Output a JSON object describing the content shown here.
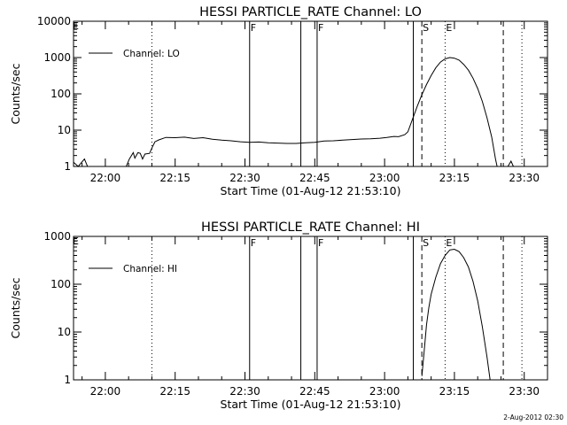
{
  "chart_data": [
    {
      "type": "line",
      "title": "HESSI PARTICLE_RATE Channel: LO",
      "xlabel": "Start Time (01-Aug-12 21:53:10)",
      "ylabel": "Counts/sec",
      "x_scale": "time",
      "y_scale": "log",
      "xlim": [
        "21:53:10",
        "23:35:00"
      ],
      "ylim": [
        1,
        10000
      ],
      "x_ticks": [
        "22:00",
        "22:15",
        "22:30",
        "22:45",
        "23:00",
        "23:15",
        "23:30"
      ],
      "y_ticks": [
        "1",
        "10",
        "100",
        "1000",
        "10000"
      ],
      "legend": {
        "position": "top-left",
        "entries": [
          "Channel: LO"
        ]
      },
      "series": [
        {
          "name": "Channel: LO",
          "color": "#000000",
          "points": [
            [
              "21:53:10",
              1.3
            ],
            [
              "21:54:10",
              0.9
            ],
            [
              "21:55:30",
              1.6
            ],
            [
              "21:56:10",
              0.9
            ],
            [
              "22:04:30",
              0.9
            ],
            [
              "22:05:10",
              1.6
            ],
            [
              "22:06:00",
              2.4
            ],
            [
              "22:06:20",
              1.7
            ],
            [
              "22:07:00",
              2.4
            ],
            [
              "22:07:30",
              2.3
            ],
            [
              "22:08:00",
              1.6
            ],
            [
              "22:08:30",
              2.2
            ],
            [
              "22:09:30",
              2.3
            ],
            [
              "22:10:00",
              3.2
            ],
            [
              "22:10:40",
              4.8
            ],
            [
              "22:11:30",
              5.4
            ],
            [
              "22:13:00",
              6.3
            ],
            [
              "22:15:00",
              6.2
            ],
            [
              "22:17:00",
              6.4
            ],
            [
              "22:19:00",
              5.9
            ],
            [
              "22:21:00",
              6.2
            ],
            [
              "22:23:00",
              5.6
            ],
            [
              "22:25:00",
              5.3
            ],
            [
              "22:27:00",
              5.1
            ],
            [
              "22:29:00",
              4.8
            ],
            [
              "22:31:00",
              4.6
            ],
            [
              "22:33:00",
              4.7
            ],
            [
              "22:35:00",
              4.5
            ],
            [
              "22:37:00",
              4.4
            ],
            [
              "22:39:00",
              4.3
            ],
            [
              "22:41:00",
              4.3
            ],
            [
              "22:43:00",
              4.5
            ],
            [
              "22:45:00",
              4.6
            ],
            [
              "22:47:00",
              5.0
            ],
            [
              "22:49:00",
              5.1
            ],
            [
              "22:51:00",
              5.3
            ],
            [
              "22:53:00",
              5.5
            ],
            [
              "22:55:00",
              5.7
            ],
            [
              "22:57:00",
              5.8
            ],
            [
              "22:59:00",
              6.0
            ],
            [
              "23:00:30",
              6.3
            ],
            [
              "23:02:00",
              6.7
            ],
            [
              "23:03:00",
              6.6
            ],
            [
              "23:04:20",
              7.5
            ],
            [
              "23:05:00",
              9
            ],
            [
              "23:06:00",
              20
            ],
            [
              "23:07:00",
              45
            ],
            [
              "23:08:00",
              95
            ],
            [
              "23:09:00",
              180
            ],
            [
              "23:10:00",
              320
            ],
            [
              "23:11:00",
              520
            ],
            [
              "23:12:00",
              750
            ],
            [
              "23:13:00",
              920
            ],
            [
              "23:14:00",
              1000
            ],
            [
              "23:15:00",
              960
            ],
            [
              "23:16:00",
              850
            ],
            [
              "23:17:00",
              650
            ],
            [
              "23:18:00",
              450
            ],
            [
              "23:19:00",
              270
            ],
            [
              "23:20:00",
              140
            ],
            [
              "23:21:00",
              62
            ],
            [
              "23:22:00",
              22
            ],
            [
              "23:23:00",
              6.5
            ],
            [
              "23:23:50",
              1.6
            ],
            [
              "23:24:10",
              0.9
            ],
            [
              "23:26:30",
              0.9
            ],
            [
              "23:27:10",
              1.4
            ],
            [
              "23:27:40",
              0.9
            ]
          ]
        }
      ],
      "lines": [
        {
          "label": "",
          "time": "22:10:00",
          "style": "dotted"
        },
        {
          "label": "F",
          "time": "22:31:00",
          "style": "solid"
        },
        {
          "label": "",
          "time": "22:42:00",
          "style": "solid"
        },
        {
          "label": "F",
          "time": "22:45:30",
          "style": "solid"
        },
        {
          "label": "",
          "time": "23:06:10",
          "style": "solid"
        },
        {
          "label": "S",
          "time": "23:08:00",
          "style": "dashed"
        },
        {
          "label": "E",
          "time": "23:13:00",
          "style": "dotted"
        },
        {
          "label": "",
          "time": "23:25:30",
          "style": "dashed"
        },
        {
          "label": "",
          "time": "23:29:30",
          "style": "dotted"
        }
      ],
      "corner_label": "E"
    },
    {
      "type": "line",
      "title": "HESSI PARTICLE_RATE Channel: HI",
      "xlabel": "Start Time (01-Aug-12 21:53:10)",
      "ylabel": "Counts/sec",
      "x_scale": "time",
      "y_scale": "log",
      "xlim": [
        "21:53:10",
        "23:35:00"
      ],
      "ylim": [
        1,
        1000
      ],
      "x_ticks": [
        "22:00",
        "22:15",
        "22:30",
        "22:45",
        "23:00",
        "23:15",
        "23:30"
      ],
      "y_ticks": [
        "1",
        "10",
        "100",
        "1000"
      ],
      "legend": {
        "position": "top-left",
        "entries": [
          "Channel: HI"
        ]
      },
      "series": [
        {
          "name": "Channel: HI",
          "color": "#000000",
          "points": [
            [
              "23:08:00",
              1.2
            ],
            [
              "23:08:30",
              4
            ],
            [
              "23:09:00",
              14
            ],
            [
              "23:09:30",
              32
            ],
            [
              "23:10:00",
              62
            ],
            [
              "23:11:00",
              140
            ],
            [
              "23:12:00",
              270
            ],
            [
              "23:13:00",
              400
            ],
            [
              "23:14:00",
              520
            ],
            [
              "23:15:00",
              540
            ],
            [
              "23:16:00",
              480
            ],
            [
              "23:17:00",
              360
            ],
            [
              "23:18:00",
              230
            ],
            [
              "23:19:00",
              115
            ],
            [
              "23:20:00",
              45
            ],
            [
              "23:21:00",
              13
            ],
            [
              "23:22:00",
              3
            ],
            [
              "23:22:40",
              1
            ]
          ]
        }
      ],
      "lines": [
        {
          "label": "",
          "time": "22:10:00",
          "style": "dotted"
        },
        {
          "label": "F",
          "time": "22:31:00",
          "style": "solid"
        },
        {
          "label": "",
          "time": "22:42:00",
          "style": "solid"
        },
        {
          "label": "F",
          "time": "22:45:30",
          "style": "solid"
        },
        {
          "label": "",
          "time": "23:06:10",
          "style": "solid"
        },
        {
          "label": "S",
          "time": "23:08:00",
          "style": "dashed"
        },
        {
          "label": "E",
          "time": "23:13:00",
          "style": "dotted"
        },
        {
          "label": "",
          "time": "23:25:30",
          "style": "dashed"
        },
        {
          "label": "",
          "time": "23:29:30",
          "style": "dotted"
        }
      ],
      "corner_label": "E"
    }
  ],
  "footer": {
    "stamp": "2-Aug-2012 02:30"
  }
}
